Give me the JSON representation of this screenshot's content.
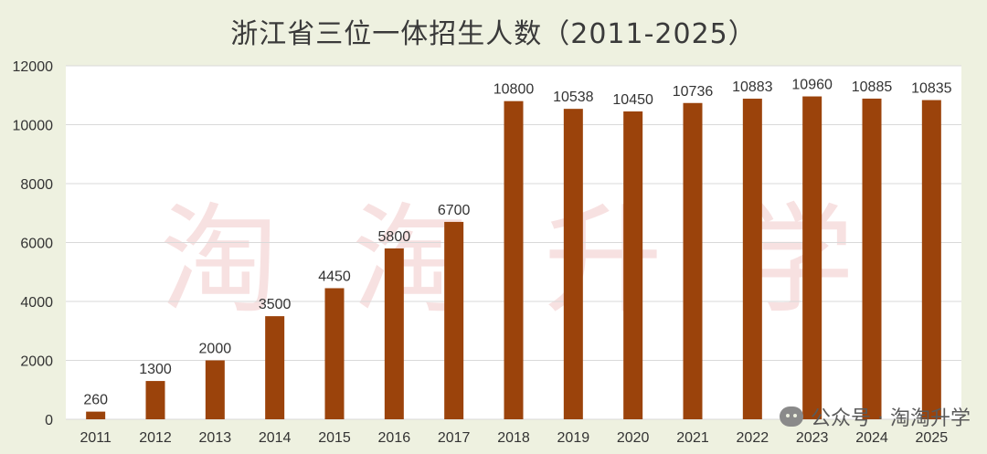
{
  "chart_data": {
    "type": "bar",
    "title": "浙江省三位一体招生人数（2011-2025）",
    "categories": [
      "2011",
      "2012",
      "2013",
      "2014",
      "2015",
      "2016",
      "2017",
      "2018",
      "2019",
      "2020",
      "2021",
      "2022",
      "2023",
      "2024",
      "2025"
    ],
    "values": [
      260,
      1300,
      2000,
      3500,
      4450,
      5800,
      6700,
      10800,
      10538,
      10450,
      10736,
      10883,
      10960,
      10885,
      10835
    ],
    "ylim": [
      0,
      12000
    ],
    "yticks": [
      0,
      2000,
      4000,
      6000,
      8000,
      10000,
      12000
    ],
    "grid": true,
    "bar_color": "#9b430b",
    "xlabel": "",
    "ylabel": ""
  },
  "watermark": {
    "chars": [
      "淘",
      "淘",
      "升",
      "学"
    ]
  },
  "footer": {
    "text": "公众号 · 淘淘升学",
    "icon": "wechat-icon"
  }
}
